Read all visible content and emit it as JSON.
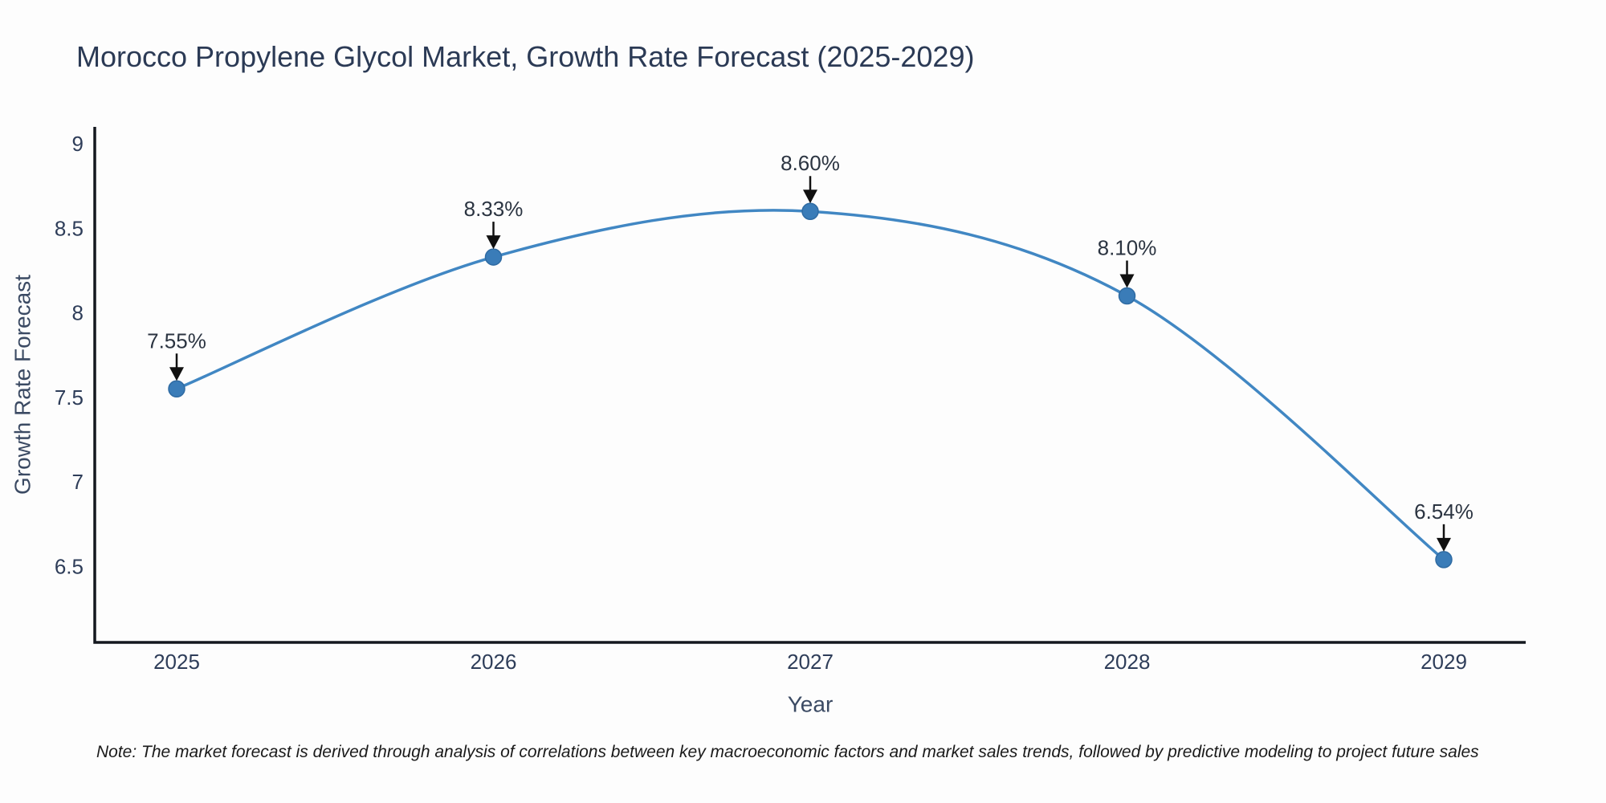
{
  "title": "Morocco Propylene Glycol Market, Growth Rate Forecast (2025-2029)",
  "note": "Note: The market forecast is derived through analysis of correlations between key macroeconomic factors and market sales trends, followed by predictive modeling to project future sales",
  "chart_data": {
    "type": "line",
    "line_shape": "spline",
    "title": "Morocco Propylene Glycol Market, Growth Rate Forecast (2025-2029)",
    "xlabel": "Year",
    "ylabel": "Growth Rate Forecast",
    "categories": [
      "2025",
      "2026",
      "2027",
      "2028",
      "2029"
    ],
    "values": [
      7.55,
      8.33,
      8.6,
      8.1,
      6.54
    ],
    "point_labels": [
      "7.55%",
      "8.33%",
      "8.60%",
      "8.10%",
      "6.54%"
    ],
    "ytick_labels": [
      "9",
      "8.5",
      "8",
      "7.5",
      "7",
      "6.5"
    ],
    "ytick_values": [
      9,
      8.5,
      8,
      7.5,
      7,
      6.5
    ],
    "ylim": [
      6.05,
      9.1
    ],
    "grid": false,
    "legend": false,
    "annotation_style": "value label above each point with downward black arrow",
    "colors": {
      "line": "#4187c3",
      "marker": "#3a7cb8",
      "marker_edge": "#2f6ba3",
      "axis": "#14181f",
      "arrow": "#111111",
      "text": "#2e3d59",
      "title": "#2b3a55",
      "note": "#1a1a1a",
      "background": "#fdfdfd"
    }
  }
}
